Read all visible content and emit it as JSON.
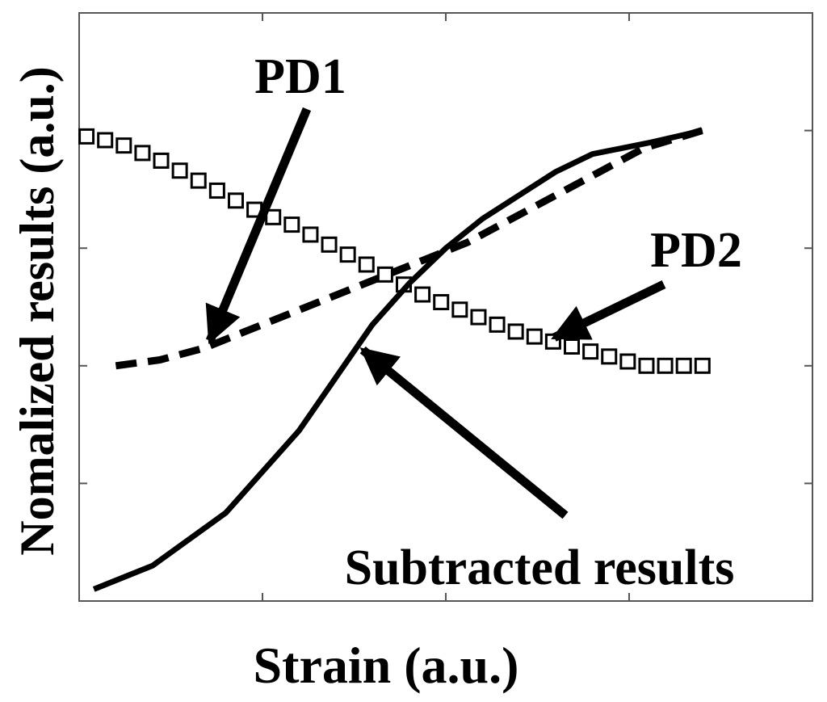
{
  "chart_data": {
    "type": "line",
    "title": "",
    "xlabel": "Strain (a.u.)",
    "ylabel": "Nomalized results (a.u.)",
    "xlim": [
      0,
      1
    ],
    "ylim": [
      0,
      1
    ],
    "grid": false,
    "tick_labels_shown": false,
    "x_ticks": [
      0.25,
      0.5,
      0.75
    ],
    "y_ticks": [
      0.2,
      0.4,
      0.6,
      0.8
    ],
    "series": [
      {
        "name": "PD1",
        "line_style": "dashed",
        "color": "#000000",
        "x": [
          0.05,
          0.11,
          0.17,
          0.23,
          0.29,
          0.35,
          0.41,
          0.47,
          0.53,
          0.59,
          0.65,
          0.71,
          0.77,
          0.85
        ],
        "y": [
          0.4,
          0.41,
          0.43,
          0.46,
          0.49,
          0.52,
          0.55,
          0.58,
          0.61,
          0.65,
          0.69,
          0.73,
          0.77,
          0.8
        ]
      },
      {
        "name": "PD2",
        "line_style": "square-markers",
        "color": "#000000",
        "x": [
          0.01,
          0.05,
          0.11,
          0.17,
          0.23,
          0.29,
          0.35,
          0.41,
          0.47,
          0.53,
          0.59,
          0.65,
          0.71,
          0.77,
          0.85
        ],
        "y": [
          0.79,
          0.78,
          0.75,
          0.71,
          0.67,
          0.64,
          0.6,
          0.56,
          0.52,
          0.49,
          0.46,
          0.44,
          0.42,
          0.4,
          0.4
        ]
      },
      {
        "name": "Subtracted results",
        "line_style": "solid",
        "color": "#000000",
        "x": [
          0.02,
          0.1,
          0.2,
          0.3,
          0.35,
          0.4,
          0.45,
          0.5,
          0.55,
          0.6,
          0.65,
          0.7,
          0.78,
          0.85
        ],
        "y": [
          0.02,
          0.06,
          0.15,
          0.29,
          0.38,
          0.47,
          0.54,
          0.6,
          0.65,
          0.69,
          0.73,
          0.76,
          0.78,
          0.8
        ]
      }
    ],
    "annotations": [
      {
        "text": "PD1",
        "points_to_series": "PD1"
      },
      {
        "text": "PD2",
        "points_to_series": "PD2"
      },
      {
        "text": "Subtracted results",
        "points_to_series": "Subtracted results"
      }
    ]
  }
}
